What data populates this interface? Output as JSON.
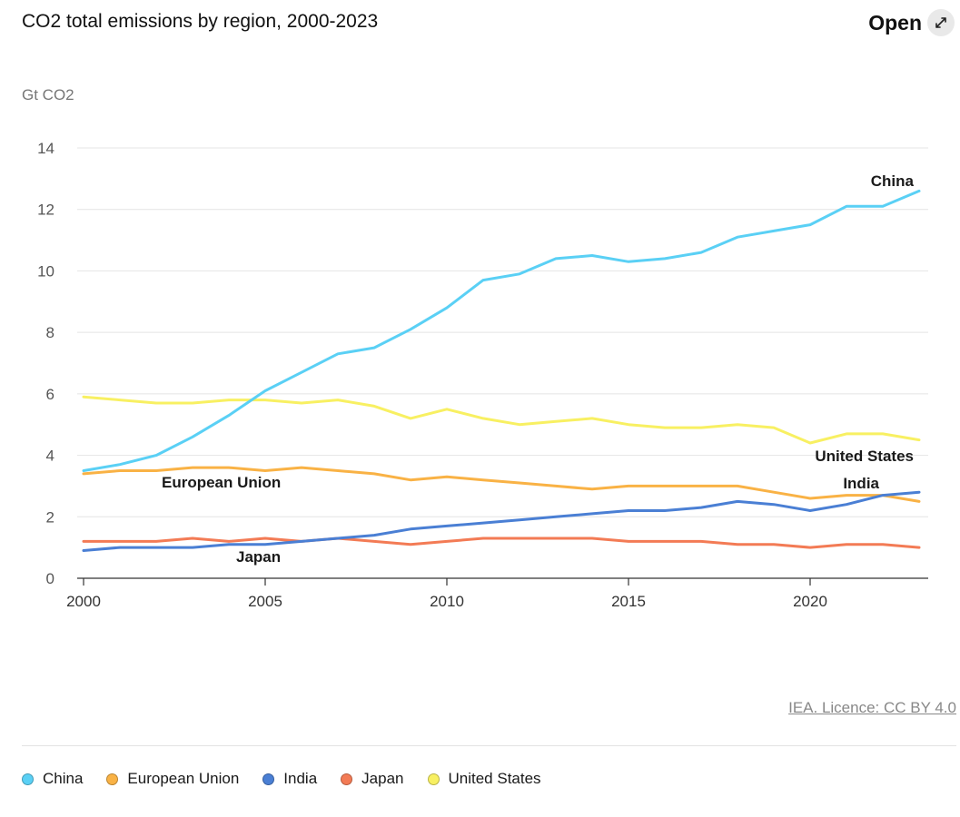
{
  "header": {
    "title": "CO2 total emissions by region, 2000-2023",
    "open_label": "Open"
  },
  "source": "IEA. Licence: CC BY 4.0",
  "chart_data": {
    "type": "line",
    "title": "CO2 total emissions by region, 2000-2023",
    "ylabel": "Gt CO2",
    "xlabel": "",
    "ylim": [
      0,
      14
    ],
    "xlim": [
      2000,
      2023
    ],
    "y_ticks": [
      0,
      2,
      4,
      6,
      8,
      10,
      12,
      14
    ],
    "x_ticks": [
      2000,
      2005,
      2010,
      2015,
      2020
    ],
    "grid": true,
    "legend_position": "bottom",
    "x": [
      2000,
      2001,
      2002,
      2003,
      2004,
      2005,
      2006,
      2007,
      2008,
      2009,
      2010,
      2011,
      2012,
      2013,
      2014,
      2015,
      2016,
      2017,
      2018,
      2019,
      2020,
      2021,
      2022,
      2023
    ],
    "series": [
      {
        "name": "China",
        "color": "#5ad0f5",
        "values": [
          3.5,
          3.7,
          4.0,
          4.6,
          5.3,
          6.1,
          6.7,
          7.3,
          7.5,
          8.1,
          8.8,
          9.7,
          9.9,
          10.4,
          10.5,
          10.3,
          10.4,
          10.6,
          11.1,
          11.3,
          11.5,
          12.1,
          12.1,
          12.6
        ]
      },
      {
        "name": "European Union",
        "color": "#f9b245",
        "values": [
          3.4,
          3.5,
          3.5,
          3.6,
          3.6,
          3.5,
          3.6,
          3.5,
          3.4,
          3.2,
          3.3,
          3.2,
          3.1,
          3.0,
          2.9,
          3.0,
          3.0,
          3.0,
          3.0,
          2.8,
          2.6,
          2.7,
          2.7,
          2.5
        ]
      },
      {
        "name": "India",
        "color": "#4a7fd4",
        "values": [
          0.9,
          1.0,
          1.0,
          1.0,
          1.1,
          1.1,
          1.2,
          1.3,
          1.4,
          1.6,
          1.7,
          1.8,
          1.9,
          2.0,
          2.1,
          2.2,
          2.2,
          2.3,
          2.5,
          2.4,
          2.2,
          2.4,
          2.7,
          2.8
        ]
      },
      {
        "name": "Japan",
        "color": "#f37b55",
        "values": [
          1.2,
          1.2,
          1.2,
          1.3,
          1.2,
          1.3,
          1.2,
          1.3,
          1.2,
          1.1,
          1.2,
          1.3,
          1.3,
          1.3,
          1.3,
          1.2,
          1.2,
          1.2,
          1.1,
          1.1,
          1.0,
          1.1,
          1.1,
          1.0
        ]
      },
      {
        "name": "United States",
        "color": "#f8f062",
        "values": [
          5.9,
          5.8,
          5.7,
          5.7,
          5.8,
          5.8,
          5.7,
          5.8,
          5.6,
          5.2,
          5.5,
          5.2,
          5.0,
          5.1,
          5.2,
          5.0,
          4.9,
          4.9,
          5.0,
          4.9,
          4.4,
          4.7,
          4.7,
          4.5
        ]
      }
    ],
    "annotations": [
      {
        "text": "China",
        "series": "China"
      },
      {
        "text": "United States",
        "series": "United States"
      },
      {
        "text": "India",
        "series": "India"
      },
      {
        "text": "European Union",
        "series": "European Union"
      },
      {
        "text": "Japan",
        "series": "Japan"
      }
    ]
  }
}
